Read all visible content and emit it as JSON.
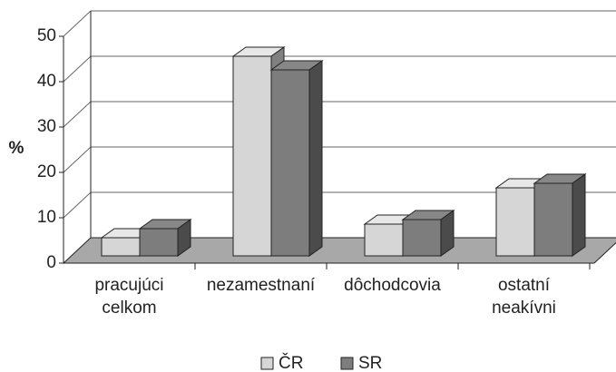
{
  "chart_data": {
    "type": "bar3d",
    "y_label": "%",
    "categories": [
      "pracujúci\ncelkom",
      "nezamestnaní",
      "dôchodcovia",
      "ostatní\nneakívni"
    ],
    "series": [
      {
        "name": "ČR",
        "color": "#d6d6d6",
        "values": [
          4,
          44,
          7,
          15
        ]
      },
      {
        "name": "SR",
        "color": "#7d7d7d",
        "values": [
          6,
          41,
          8,
          16
        ]
      }
    ],
    "ylim": [
      0,
      50
    ],
    "yticks": [
      0,
      10,
      20,
      30,
      40,
      50
    ],
    "grid": true,
    "legend": "bottom"
  }
}
